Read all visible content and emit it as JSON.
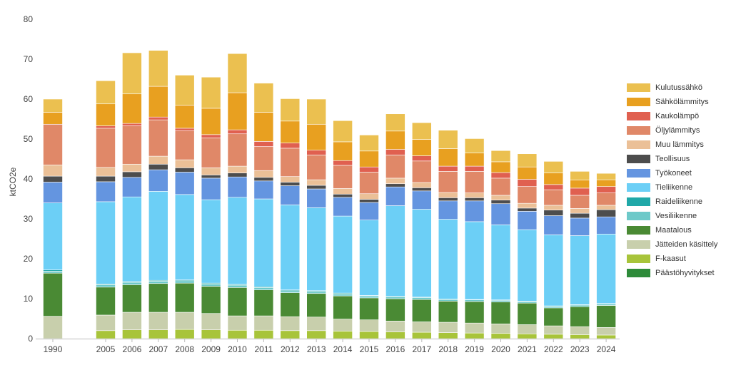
{
  "chart_data": {
    "type": "bar",
    "stacked": true,
    "ylabel": "ktCO2e",
    "ylim": [
      0,
      80
    ],
    "yticks": [
      "0",
      "10",
      "20",
      "30",
      "40",
      "50",
      "60",
      "70",
      "80"
    ],
    "grid": false,
    "legend_position": "right",
    "categories": [
      "1990",
      "2005",
      "2006",
      "2007",
      "2008",
      "2009",
      "2010",
      "2011",
      "2012",
      "2013",
      "2014",
      "2015",
      "2016",
      "2017",
      "2018",
      "2019",
      "2020",
      "2021",
      "2022",
      "2023",
      "2024"
    ],
    "series": [
      {
        "name": "Päästöhyvitykset",
        "color": "#2e8b3a",
        "values": [
          0,
          0,
          0,
          0,
          0,
          0,
          0,
          0,
          0,
          0,
          0,
          0,
          0,
          0,
          0,
          0,
          0,
          0,
          0,
          0,
          0
        ]
      },
      {
        "name": "F-kaasut",
        "color": "#a8c43a",
        "values": [
          0,
          2.0,
          2.2,
          2.2,
          2.3,
          2.2,
          2.1,
          2.1,
          2.0,
          2.0,
          1.9,
          1.8,
          1.7,
          1.6,
          1.5,
          1.4,
          1.3,
          1.2,
          1.1,
          1.0,
          0.9
        ]
      },
      {
        "name": "Jätteiden käsittely",
        "color": "#c8cfac",
        "values": [
          5.6,
          3.9,
          4.4,
          4.4,
          4.3,
          4.1,
          3.6,
          3.6,
          3.5,
          3.4,
          3.0,
          2.9,
          2.7,
          2.6,
          2.6,
          2.5,
          2.4,
          2.3,
          2.1,
          2.0,
          1.9
        ]
      },
      {
        "name": "Maatalous",
        "color": "#4a8a34",
        "values": [
          10.8,
          7.0,
          6.9,
          7.2,
          7.3,
          6.8,
          7.1,
          6.5,
          6.0,
          5.9,
          5.8,
          5.5,
          5.6,
          5.6,
          5.3,
          5.4,
          5.5,
          5.4,
          4.5,
          5.0,
          5.5
        ]
      },
      {
        "name": "Vesiliikenne",
        "color": "#6dc9c9",
        "values": [
          0.5,
          0.6,
          0.6,
          0.6,
          0.6,
          0.6,
          0.6,
          0.6,
          0.5,
          0.5,
          0.5,
          0.5,
          0.5,
          0.5,
          0.4,
          0.4,
          0.4,
          0.4,
          0.4,
          0.4,
          0.4
        ]
      },
      {
        "name": "Raideliikenne",
        "color": "#20a8a8",
        "values": [
          0.3,
          0.2,
          0.2,
          0.2,
          0.2,
          0.2,
          0.2,
          0.2,
          0.2,
          0.2,
          0.2,
          0.1,
          0.1,
          0.1,
          0.1,
          0.1,
          0.1,
          0.1,
          0.1,
          0.1,
          0.1
        ]
      },
      {
        "name": "Tieliikenne",
        "color": "#6ccff6",
        "values": [
          16.8,
          20.6,
          21.2,
          22.3,
          21.4,
          20.9,
          21.8,
          22.0,
          21.3,
          20.8,
          19.3,
          18.9,
          22.7,
          22.0,
          20.0,
          19.5,
          18.8,
          17.9,
          17.8,
          17.3,
          17.4
        ]
      },
      {
        "name": "Työkoneet",
        "color": "#6495e0",
        "values": [
          5.2,
          5.0,
          4.9,
          5.4,
          5.6,
          5.4,
          5.1,
          4.5,
          4.8,
          4.7,
          4.7,
          4.4,
          4.7,
          4.6,
          4.6,
          5.2,
          5.3,
          4.6,
          4.8,
          4.4,
          4.3
        ]
      },
      {
        "name": "Teollisuus",
        "color": "#4d4d4d",
        "values": [
          1.5,
          1.4,
          1.4,
          1.4,
          1.1,
          0.8,
          1.0,
          0.9,
          0.9,
          0.9,
          0.8,
          0.8,
          0.8,
          0.8,
          0.8,
          0.8,
          0.9,
          0.8,
          1.4,
          1.2,
          1.8
        ]
      },
      {
        "name": "Muu lämmitys",
        "color": "#ebc097",
        "values": [
          2.8,
          2.2,
          1.9,
          2.0,
          2.0,
          1.8,
          1.7,
          1.7,
          1.4,
          1.4,
          1.4,
          1.4,
          1.4,
          1.3,
          1.3,
          1.2,
          1.2,
          1.2,
          1.2,
          1.2,
          1.1
        ]
      },
      {
        "name": "Öljylämmitys",
        "color": "#e08868",
        "values": [
          10.2,
          9.8,
          9.6,
          9.1,
          7.3,
          7.5,
          8.1,
          6.0,
          7.1,
          6.2,
          5.8,
          5.4,
          5.8,
          5.4,
          5.3,
          5.4,
          4.3,
          4.2,
          3.9,
          3.3,
          3.1
        ]
      },
      {
        "name": "Kaukolämpö",
        "color": "#e06050",
        "values": [
          0,
          0.6,
          0.6,
          0.7,
          0.6,
          0.8,
          1.0,
          1.3,
          1.3,
          1.2,
          1.2,
          1.3,
          1.4,
          1.3,
          1.3,
          1.3,
          1.4,
          1.8,
          1.3,
          1.8,
          1.6
        ]
      },
      {
        "name": "Sähkölämmitys",
        "color": "#e8a020",
        "values": [
          3.0,
          5.5,
          7.4,
          7.7,
          5.8,
          6.6,
          9.3,
          7.3,
          5.5,
          6.5,
          4.7,
          4.0,
          4.6,
          4.1,
          4.4,
          3.3,
          2.7,
          3.1,
          2.9,
          2.0,
          1.7
        ]
      },
      {
        "name": "Kulutussähkö",
        "color": "#ebc050",
        "values": [
          3.3,
          5.8,
          10.3,
          9.0,
          7.5,
          7.8,
          9.8,
          7.3,
          5.6,
          6.3,
          5.3,
          4.0,
          4.3,
          4.2,
          4.6,
          3.6,
          2.8,
          3.3,
          2.9,
          2.2,
          1.6
        ]
      }
    ]
  }
}
